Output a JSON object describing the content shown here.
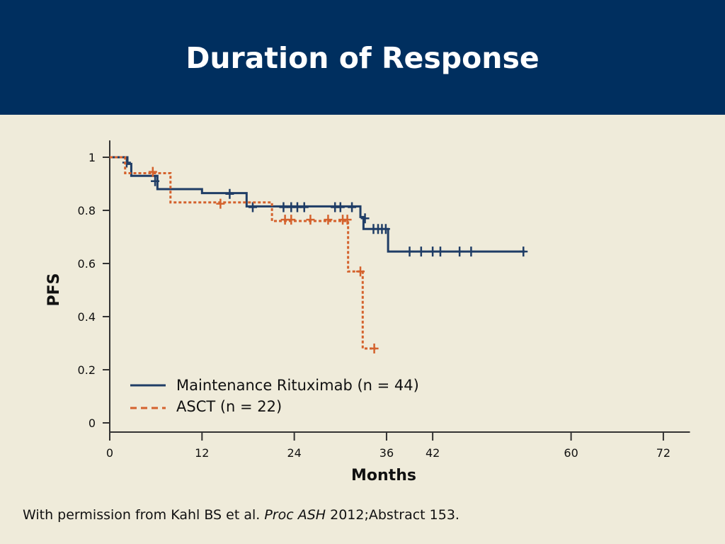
{
  "slide": {
    "title": "Duration of Response",
    "caption_pre": "With permission from Kahl BS et al. ",
    "caption_italic": "Proc ASH",
    "caption_post": " 2012;Abstract 153.",
    "header_color": "#002f5f",
    "background_color": "#efebda"
  },
  "chart_data": {
    "type": "line",
    "subtype": "kaplan-meier step",
    "xlabel": "Months",
    "ylabel": "PFS",
    "xlim": [
      0,
      75
    ],
    "ylim": [
      0,
      1.05
    ],
    "x_ticks": [
      0,
      12,
      24,
      36,
      42,
      60,
      72
    ],
    "y_ticks": [
      0,
      0.2,
      0.4,
      0.6,
      0.8,
      1
    ],
    "y_tick_labels": [
      "0",
      "0.2",
      "0.4",
      "0.6",
      "0.8",
      "1"
    ],
    "grid": false,
    "legend_position": "bottom-left",
    "series": [
      {
        "name": "Maintenance Rituximab (n = 44)",
        "color": "#1f3d66",
        "dash": "solid",
        "steps": [
          [
            0,
            1.0
          ],
          [
            2.3,
            0.975
          ],
          [
            2.8,
            0.93
          ],
          [
            6.2,
            0.88
          ],
          [
            12,
            0.865
          ],
          [
            17.8,
            0.815
          ],
          [
            32.6,
            0.775
          ],
          [
            33.0,
            0.73
          ],
          [
            36.2,
            0.645
          ],
          [
            54,
            0.645
          ]
        ],
        "censored": [
          [
            2.2,
            0.98
          ],
          [
            5.9,
            0.91
          ],
          [
            15.6,
            0.862
          ],
          [
            18.6,
            0.812
          ],
          [
            22.6,
            0.812
          ],
          [
            23.6,
            0.812
          ],
          [
            24.4,
            0.812
          ],
          [
            25.3,
            0.812
          ],
          [
            29.3,
            0.812
          ],
          [
            30.0,
            0.812
          ],
          [
            31.5,
            0.812
          ],
          [
            33.2,
            0.77
          ],
          [
            34.3,
            0.73
          ],
          [
            34.9,
            0.73
          ],
          [
            35.4,
            0.73
          ],
          [
            35.9,
            0.73
          ],
          [
            39.0,
            0.645
          ],
          [
            40.5,
            0.645
          ],
          [
            42.0,
            0.645
          ],
          [
            43.0,
            0.645
          ],
          [
            45.5,
            0.645
          ],
          [
            47.0,
            0.645
          ],
          [
            53.8,
            0.645
          ]
        ]
      },
      {
        "name": "ASCT (n = 22)",
        "color": "#d4622d",
        "dash": "dashed",
        "steps": [
          [
            0,
            1.0
          ],
          [
            2.0,
            0.94
          ],
          [
            7.9,
            0.83
          ],
          [
            21.1,
            0.76
          ],
          [
            31.0,
            0.57
          ],
          [
            32.9,
            0.28
          ],
          [
            34.6,
            0.28
          ]
        ],
        "censored": [
          [
            5.6,
            0.945
          ],
          [
            14.4,
            0.825
          ],
          [
            22.8,
            0.765
          ],
          [
            23.6,
            0.765
          ],
          [
            26.1,
            0.765
          ],
          [
            28.4,
            0.765
          ],
          [
            30.3,
            0.765
          ],
          [
            30.9,
            0.765
          ],
          [
            32.6,
            0.57
          ],
          [
            34.4,
            0.28
          ]
        ]
      }
    ]
  }
}
